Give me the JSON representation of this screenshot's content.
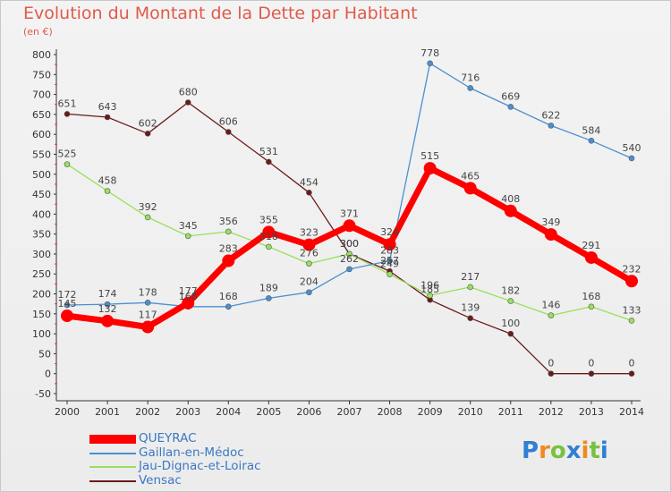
{
  "chart_data": {
    "type": "line",
    "title": "Evolution du Montant de la Dette par Habitant",
    "subtitle": "(en €)",
    "x": [
      "2000",
      "2001",
      "2002",
      "2003",
      "2004",
      "2005",
      "2006",
      "2007",
      "2008",
      "2009",
      "2010",
      "2011",
      "2012",
      "2013",
      "2014"
    ],
    "ylim": [
      -50,
      800
    ],
    "yticks": [
      -50,
      0,
      50,
      100,
      150,
      200,
      250,
      300,
      350,
      400,
      450,
      500,
      550,
      600,
      650,
      700,
      750,
      800
    ],
    "grid": false,
    "legend_position": "bottom-left",
    "series": [
      {
        "name": "QUEYRAC",
        "color": "#ff0000",
        "values": [
          145,
          132,
          117,
          177,
          283,
          355,
          323,
          371,
          324,
          515,
          465,
          408,
          349,
          291,
          232
        ]
      },
      {
        "name": "Gaillan-en-Médoc",
        "color": "#4a90d0",
        "values": [
          172,
          174,
          178,
          168,
          168,
          189,
          204,
          262,
          283,
          778,
          716,
          669,
          622,
          584,
          540
        ]
      },
      {
        "name": "Jau-Dignac-et-Loirac",
        "color": "#99e05c",
        "values": [
          525,
          458,
          392,
          345,
          356,
          318,
          276,
          300,
          249,
          196,
          217,
          182,
          146,
          168,
          133
        ]
      },
      {
        "name": "Vensac",
        "color": "#6b1a1a",
        "values": [
          651,
          643,
          602,
          680,
          606,
          531,
          454,
          300,
          257,
          185,
          139,
          100,
          0,
          0,
          0
        ]
      }
    ]
  },
  "logo": {
    "letters": [
      "P",
      "r",
      "o",
      "x",
      "i",
      "t",
      "i"
    ],
    "colors": [
      "#2f7fd3",
      "#f08a1e",
      "#7ac142",
      "#2f7fd3",
      "#f08a1e",
      "#7ac142",
      "#2f7fd3"
    ]
  }
}
